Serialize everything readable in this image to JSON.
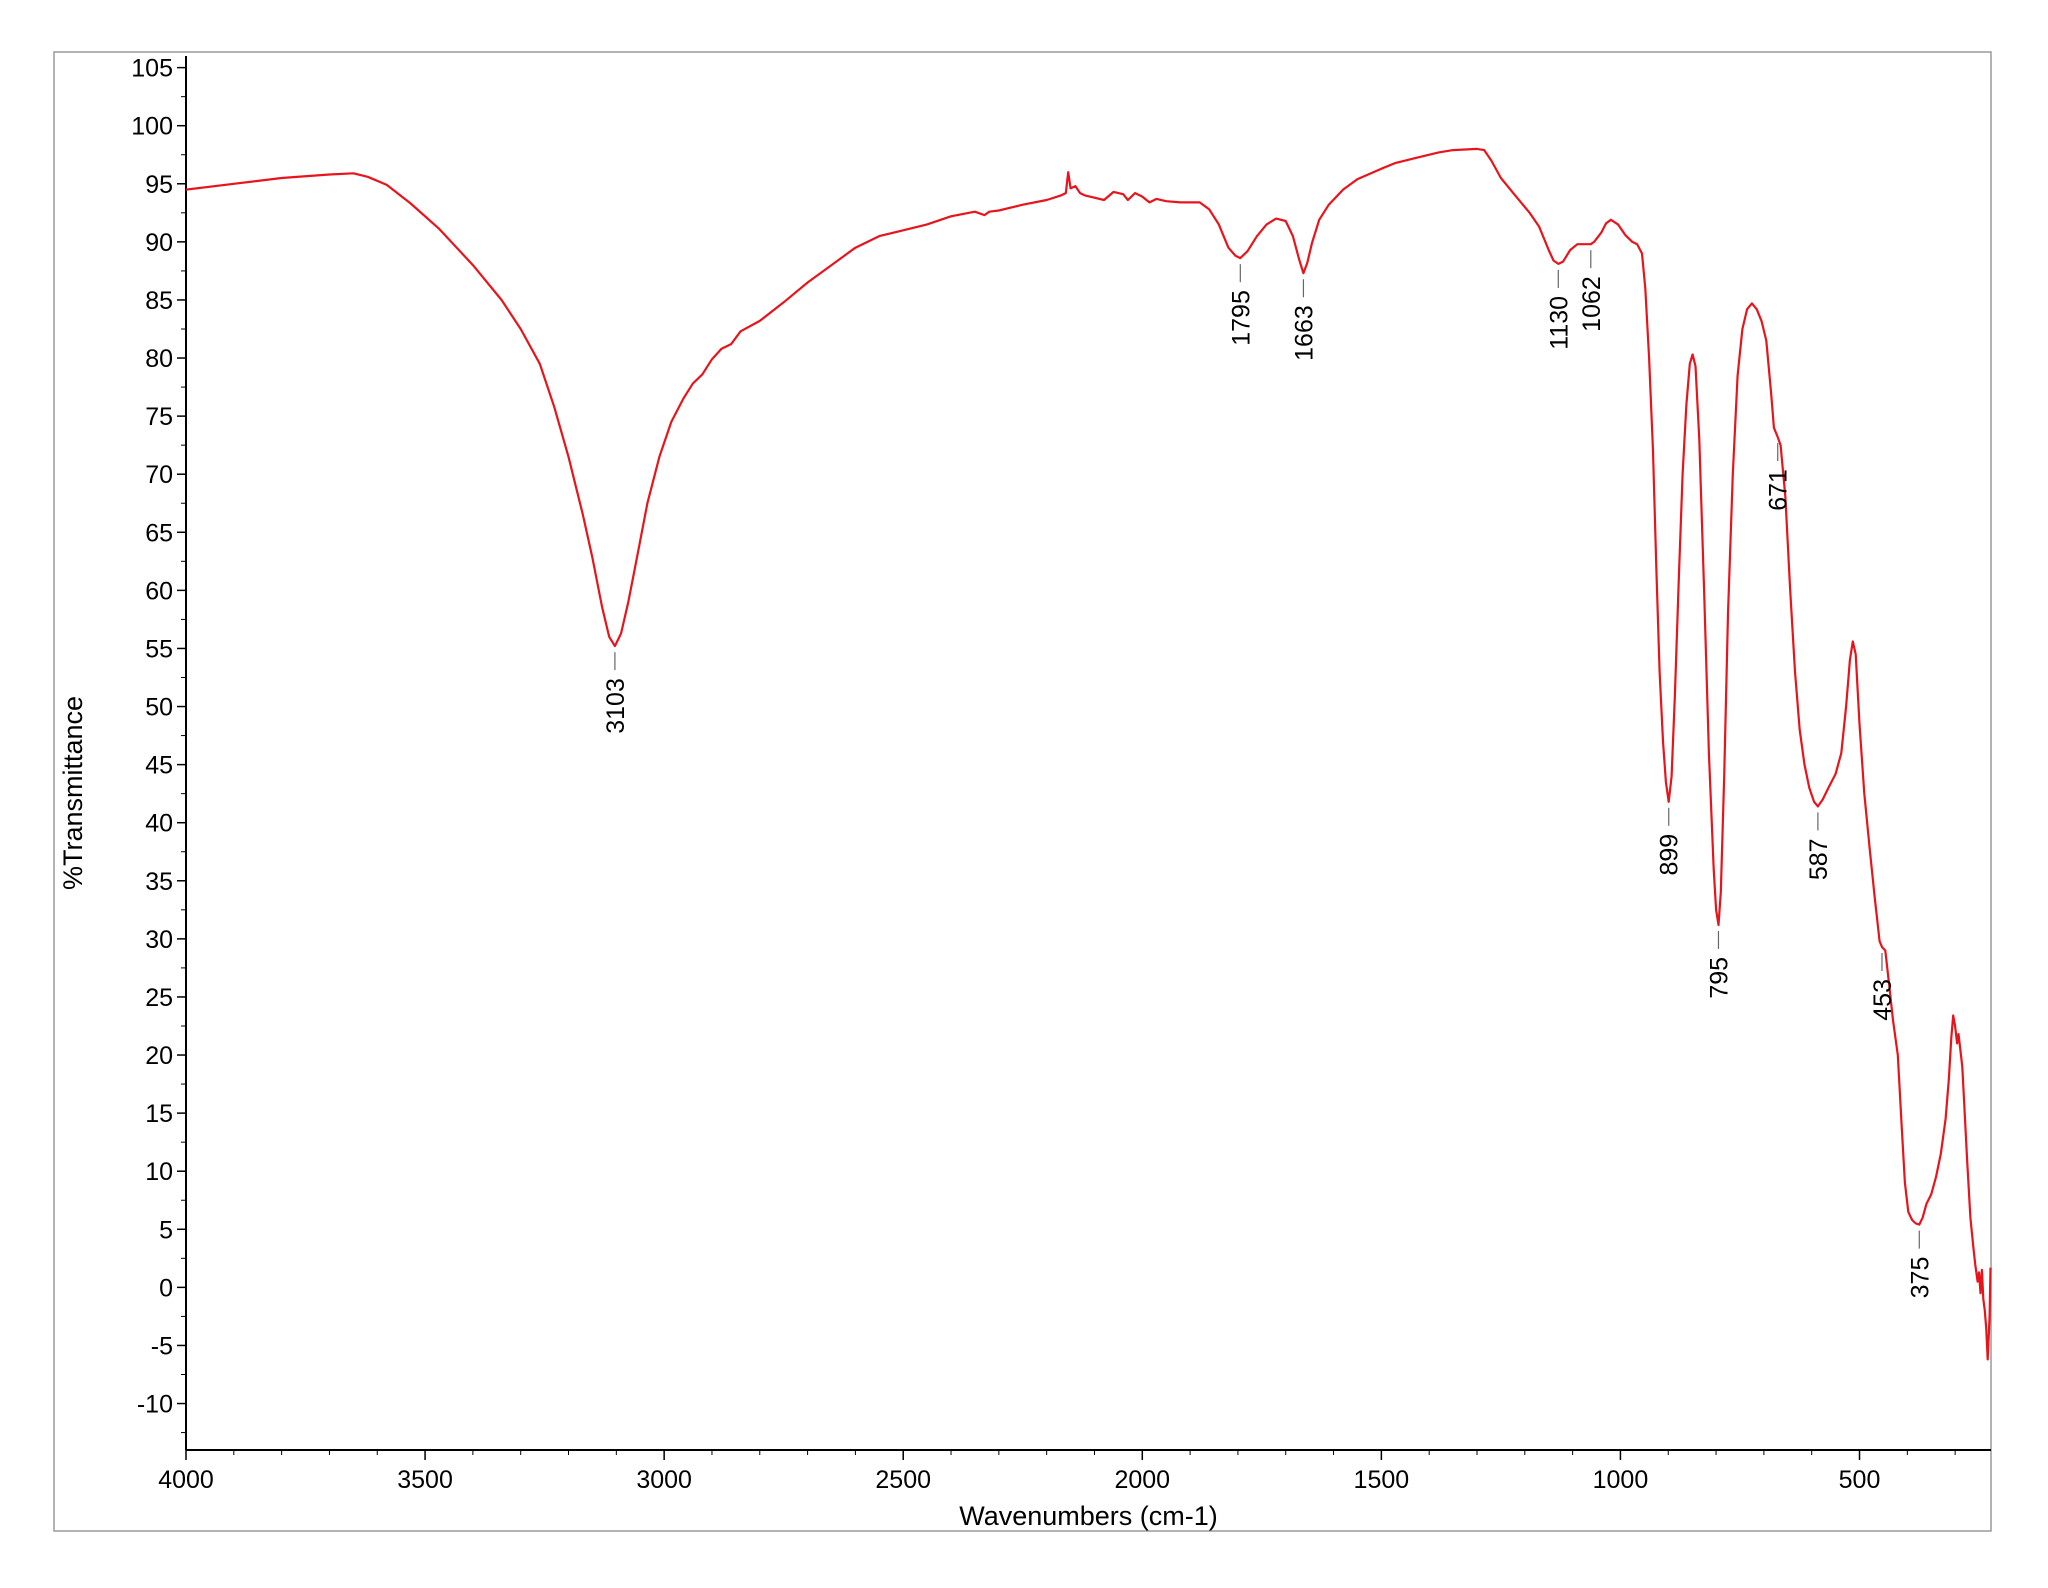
{
  "chart_data": {
    "type": "line",
    "xlabel": "Wavenumbers (cm-1)",
    "ylabel": "%Transmittance",
    "xlim": [
      4000,
      225
    ],
    "ylim": [
      -14,
      106
    ],
    "x_reversed": true,
    "grid": false,
    "line_color": "#e8141b",
    "x_ticks": [
      "4000",
      "3500",
      "3000",
      "2500",
      "2000",
      "1500",
      "1000",
      "500"
    ],
    "y_ticks": [
      "105",
      "100",
      "95",
      "90",
      "85",
      "80",
      "75",
      "70",
      "65",
      "60",
      "55",
      "50",
      "45",
      "40",
      "35",
      "30",
      "25",
      "20",
      "15",
      "10",
      "5",
      "0",
      "-5",
      "-10"
    ],
    "series": [
      {
        "values": [
          [
            4000,
            94.5
          ],
          [
            3900,
            95.0
          ],
          [
            3800,
            95.5
          ],
          [
            3700,
            95.8
          ],
          [
            3650,
            95.9
          ],
          [
            3620,
            95.6
          ],
          [
            3580,
            94.9
          ],
          [
            3530,
            93.3
          ],
          [
            3470,
            91.1
          ],
          [
            3400,
            88.0
          ],
          [
            3340,
            85.0
          ],
          [
            3300,
            82.5
          ],
          [
            3260,
            79.5
          ],
          [
            3230,
            75.8
          ],
          [
            3200,
            71.5
          ],
          [
            3170,
            66.5
          ],
          [
            3150,
            62.8
          ],
          [
            3130,
            58.6
          ],
          [
            3115,
            56.0
          ],
          [
            3103,
            55.2
          ],
          [
            3090,
            56.3
          ],
          [
            3075,
            59.0
          ],
          [
            3055,
            63.2
          ],
          [
            3035,
            67.5
          ],
          [
            3010,
            71.5
          ],
          [
            2985,
            74.5
          ],
          [
            2960,
            76.5
          ],
          [
            2940,
            77.8
          ],
          [
            2920,
            78.6
          ],
          [
            2900,
            79.9
          ],
          [
            2880,
            80.8
          ],
          [
            2860,
            81.2
          ],
          [
            2840,
            82.3
          ],
          [
            2800,
            83.2
          ],
          [
            2750,
            84.8
          ],
          [
            2700,
            86.5
          ],
          [
            2650,
            88.0
          ],
          [
            2600,
            89.5
          ],
          [
            2550,
            90.5
          ],
          [
            2500,
            91.0
          ],
          [
            2450,
            91.5
          ],
          [
            2400,
            92.2
          ],
          [
            2350,
            92.6
          ],
          [
            2330,
            92.3
          ],
          [
            2320,
            92.6
          ],
          [
            2300,
            92.7
          ],
          [
            2250,
            93.2
          ],
          [
            2200,
            93.6
          ],
          [
            2170,
            94.0
          ],
          [
            2160,
            94.2
          ],
          [
            2155,
            96.0
          ],
          [
            2150,
            94.6
          ],
          [
            2140,
            94.8
          ],
          [
            2130,
            94.2
          ],
          [
            2120,
            94.0
          ],
          [
            2100,
            93.8
          ],
          [
            2080,
            93.6
          ],
          [
            2060,
            94.3
          ],
          [
            2040,
            94.1
          ],
          [
            2030,
            93.6
          ],
          [
            2015,
            94.2
          ],
          [
            2000,
            93.9
          ],
          [
            1985,
            93.4
          ],
          [
            1970,
            93.7
          ],
          [
            1950,
            93.5
          ],
          [
            1920,
            93.4
          ],
          [
            1880,
            93.4
          ],
          [
            1860,
            92.8
          ],
          [
            1840,
            91.5
          ],
          [
            1820,
            89.5
          ],
          [
            1805,
            88.8
          ],
          [
            1795,
            88.6
          ],
          [
            1780,
            89.2
          ],
          [
            1760,
            90.5
          ],
          [
            1740,
            91.5
          ],
          [
            1720,
            92.0
          ],
          [
            1700,
            91.8
          ],
          [
            1685,
            90.5
          ],
          [
            1672,
            88.5
          ],
          [
            1663,
            87.3
          ],
          [
            1655,
            88.2
          ],
          [
            1645,
            89.9
          ],
          [
            1630,
            91.9
          ],
          [
            1610,
            93.2
          ],
          [
            1580,
            94.5
          ],
          [
            1550,
            95.4
          ],
          [
            1500,
            96.3
          ],
          [
            1470,
            96.8
          ],
          [
            1430,
            97.2
          ],
          [
            1380,
            97.7
          ],
          [
            1350,
            97.9
          ],
          [
            1300,
            98.0
          ],
          [
            1285,
            97.9
          ],
          [
            1270,
            97.0
          ],
          [
            1250,
            95.5
          ],
          [
            1220,
            94.0
          ],
          [
            1190,
            92.5
          ],
          [
            1170,
            91.3
          ],
          [
            1150,
            89.3
          ],
          [
            1140,
            88.4
          ],
          [
            1130,
            88.1
          ],
          [
            1120,
            88.3
          ],
          [
            1105,
            89.3
          ],
          [
            1090,
            89.8
          ],
          [
            1062,
            89.8
          ],
          [
            1055,
            90.0
          ],
          [
            1040,
            90.8
          ],
          [
            1030,
            91.6
          ],
          [
            1020,
            91.9
          ],
          [
            1005,
            91.5
          ],
          [
            990,
            90.6
          ],
          [
            975,
            90.0
          ],
          [
            965,
            89.8
          ],
          [
            955,
            89.0
          ],
          [
            948,
            86.0
          ],
          [
            940,
            80.0
          ],
          [
            932,
            72.0
          ],
          [
            925,
            62.0
          ],
          [
            918,
            53.0
          ],
          [
            911,
            47.0
          ],
          [
            905,
            43.5
          ],
          [
            899,
            41.8
          ],
          [
            893,
            44.0
          ],
          [
            886,
            51.0
          ],
          [
            878,
            61.0
          ],
          [
            870,
            70.0
          ],
          [
            862,
            76.0
          ],
          [
            855,
            79.5
          ],
          [
            849,
            80.3
          ],
          [
            843,
            79.3
          ],
          [
            835,
            73.0
          ],
          [
            825,
            60.0
          ],
          [
            815,
            46.0
          ],
          [
            805,
            36.0
          ],
          [
            800,
            32.5
          ],
          [
            795,
            31.2
          ],
          [
            790,
            34.0
          ],
          [
            783,
            44.0
          ],
          [
            775,
            58.0
          ],
          [
            765,
            70.0
          ],
          [
            755,
            78.5
          ],
          [
            745,
            82.5
          ],
          [
            735,
            84.2
          ],
          [
            725,
            84.7
          ],
          [
            715,
            84.2
          ],
          [
            705,
            83.2
          ],
          [
            695,
            81.5
          ],
          [
            685,
            77.0
          ],
          [
            679,
            74.0
          ],
          [
            671,
            73.2
          ],
          [
            665,
            72.5
          ],
          [
            655,
            68.0
          ],
          [
            645,
            60.0
          ],
          [
            635,
            53.0
          ],
          [
            625,
            48.0
          ],
          [
            615,
            45.0
          ],
          [
            605,
            43.0
          ],
          [
            595,
            41.8
          ],
          [
            587,
            41.4
          ],
          [
            577,
            42.0
          ],
          [
            565,
            43.0
          ],
          [
            550,
            44.2
          ],
          [
            538,
            46.0
          ],
          [
            528,
            50.0
          ],
          [
            520,
            54.0
          ],
          [
            514,
            55.6
          ],
          [
            508,
            54.5
          ],
          [
            500,
            48.5
          ],
          [
            490,
            42.5
          ],
          [
            478,
            37.5
          ],
          [
            468,
            33.5
          ],
          [
            458,
            29.8
          ],
          [
            453,
            29.3
          ],
          [
            446,
            29.0
          ],
          [
            438,
            26.0
          ],
          [
            430,
            23.0
          ],
          [
            420,
            20.0
          ],
          [
            412,
            14.0
          ],
          [
            405,
            9.0
          ],
          [
            398,
            6.5
          ],
          [
            390,
            5.8
          ],
          [
            382,
            5.5
          ],
          [
            375,
            5.4
          ],
          [
            368,
            6.0
          ],
          [
            360,
            7.2
          ],
          [
            350,
            8.0
          ],
          [
            340,
            9.5
          ],
          [
            330,
            11.5
          ],
          [
            320,
            14.5
          ],
          [
            313,
            18.0
          ],
          [
            308,
            21.5
          ],
          [
            304,
            23.4
          ],
          [
            300,
            22.5
          ],
          [
            296,
            21.0
          ],
          [
            293,
            21.8
          ],
          [
            290,
            20.8
          ],
          [
            285,
            19.0
          ],
          [
            280,
            15.0
          ],
          [
            275,
            11.0
          ],
          [
            268,
            6.0
          ],
          [
            262,
            3.5
          ],
          [
            258,
            2.0
          ],
          [
            253,
            0.5
          ],
          [
            250,
            1.3
          ],
          [
            247,
            -0.5
          ],
          [
            244,
            1.5
          ],
          [
            241,
            -1.0
          ],
          [
            238,
            -2.0
          ],
          [
            235,
            -3.5
          ],
          [
            232,
            -6.2
          ],
          [
            230,
            -4.5
          ],
          [
            228,
            -2.5
          ],
          [
            226,
            1.7
          ]
        ]
      }
    ],
    "peaks": [
      {
        "x": 3103,
        "label": "3103"
      },
      {
        "x": 1795,
        "label": "1795"
      },
      {
        "x": 1663,
        "label": "1663"
      },
      {
        "x": 1130,
        "label": "1130"
      },
      {
        "x": 1062,
        "label": "1062"
      },
      {
        "x": 899,
        "label": "899"
      },
      {
        "x": 795,
        "label": "795"
      },
      {
        "x": 671,
        "label": "671"
      },
      {
        "x": 587,
        "label": "587"
      },
      {
        "x": 453,
        "label": "453"
      },
      {
        "x": 375,
        "label": "375"
      }
    ]
  }
}
